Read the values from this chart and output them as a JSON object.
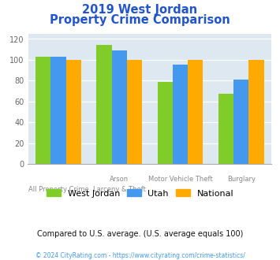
{
  "title_line1": "2019 West Jordan",
  "title_line2": "Property Crime Comparison",
  "cat_labels_row1": [
    "All Property Crime",
    "Arson",
    "Motor Vehicle Theft",
    "Burglary"
  ],
  "cat_labels_row2": [
    "",
    "Larceny & Theft",
    "",
    ""
  ],
  "west_jordan": [
    103,
    114,
    79,
    67
  ],
  "utah": [
    103,
    109,
    95,
    81
  ],
  "national": [
    100,
    100,
    100,
    100
  ],
  "colors": {
    "west_jordan": "#80cc28",
    "utah": "#4499ee",
    "national": "#ffaa00"
  },
  "ylim": [
    0,
    125
  ],
  "yticks": [
    0,
    20,
    40,
    60,
    80,
    100,
    120
  ],
  "title_color": "#2255cc",
  "plot_bg": "#dde8f0",
  "fig_bg": "#ffffff",
  "footer_text": "Compared to U.S. average. (U.S. average equals 100)",
  "copyright_text": "© 2024 CityRating.com - https://www.cityrating.com/crime-statistics/",
  "legend_labels": [
    "West Jordan",
    "Utah",
    "National"
  ],
  "bar_width": 0.25
}
